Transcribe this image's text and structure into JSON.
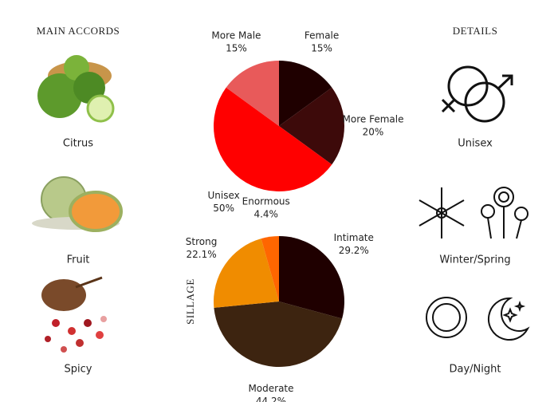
{
  "accords": {
    "title": "MAIN ACCORDS",
    "items": [
      "Citrus",
      "Fruit",
      "Spicy"
    ]
  },
  "details": {
    "title": "DETAILS",
    "items": [
      "Unisex",
      "Winter/Spring",
      "Day/Night"
    ]
  },
  "chart_data": [
    {
      "type": "pie",
      "categories": [
        "Female",
        "More Female",
        "Unisex",
        "More Male"
      ],
      "values": [
        15,
        20,
        50,
        15
      ],
      "value_labels": [
        "15%",
        "20%",
        "50%",
        "15%"
      ],
      "colors": [
        "#1f0000",
        "#3d0a0a",
        "#ff0000",
        "#e85a5a"
      ]
    },
    {
      "type": "pie",
      "title": "SILLAGE",
      "categories": [
        "Intimate",
        "Moderate",
        "Strong",
        "Enormous"
      ],
      "values": [
        29.2,
        44.2,
        22.1,
        4.4
      ],
      "value_labels": [
        "29.2%",
        "44.2%",
        "22.1%",
        "4.4%"
      ],
      "colors": [
        "#1f0000",
        "#3d2410",
        "#f08c00",
        "#ff6600"
      ]
    }
  ]
}
